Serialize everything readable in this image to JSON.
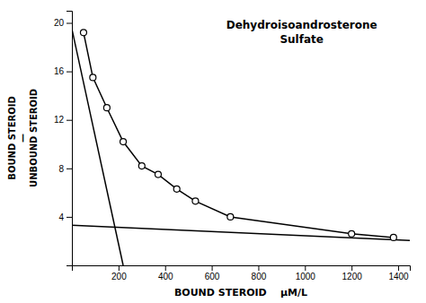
{
  "chart_data": {
    "type": "line",
    "title": "Dehydroisoandrosterone",
    "subtitle": "Sulfate",
    "xlabel": "BOUND STEROID    μM/L",
    "ylabel": "BOUND STEROID\n—\nUNBOUND STEROID",
    "xlim": [
      0,
      1450
    ],
    "ylim": [
      0,
      21
    ],
    "xticks": [
      200,
      400,
      600,
      800,
      1000,
      1200,
      1400
    ],
    "yticks": [
      4,
      8,
      12,
      16,
      20
    ],
    "grid": false,
    "series": [
      {
        "x": [
          0,
          220
        ],
        "values": [
          19.5,
          0.0
        ],
        "color": "#000000"
      },
      {
        "x": [
          0,
          1450
        ],
        "values": [
          3.3,
          2.05
        ],
        "color": "#000000"
      },
      {
        "x": [
          50,
          90,
          150,
          220,
          300,
          370,
          450,
          530,
          680,
          1200,
          1380
        ],
        "values": [
          19.2,
          15.5,
          13.0,
          10.2,
          8.2,
          7.5,
          6.3,
          5.3,
          4.0,
          2.6,
          2.3
        ],
        "color": "#000000",
        "marker": "circle"
      }
    ]
  }
}
